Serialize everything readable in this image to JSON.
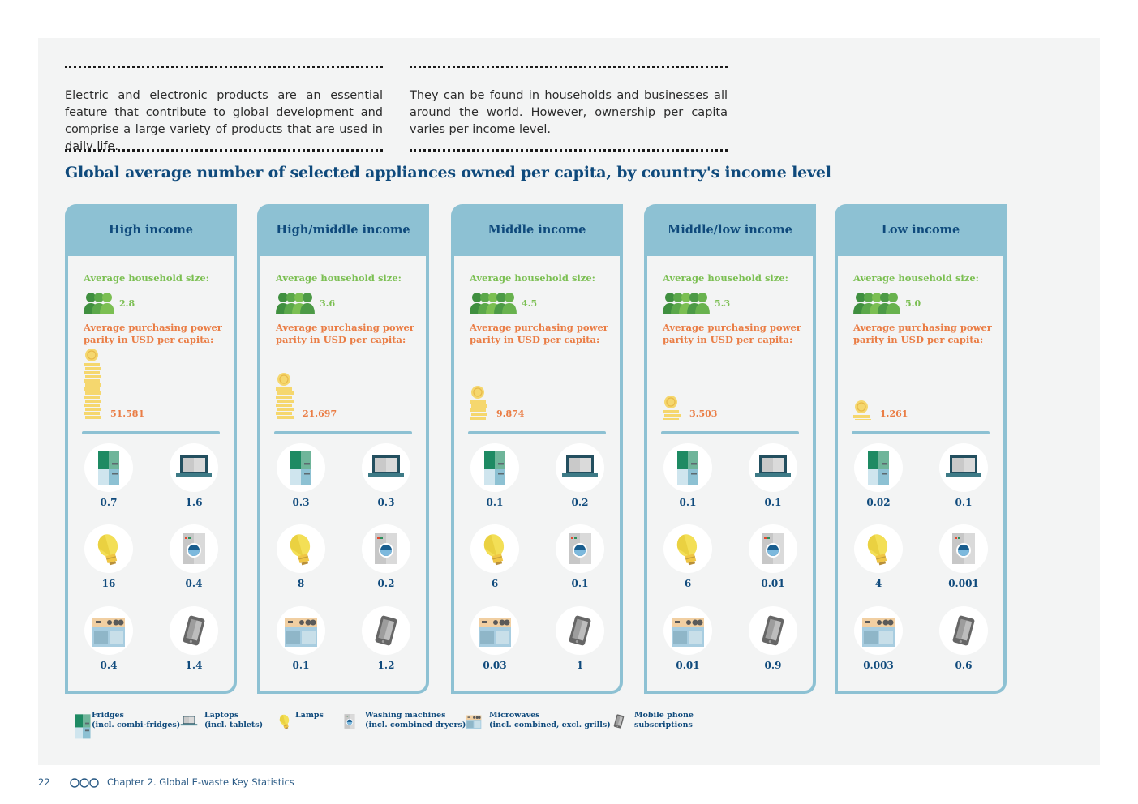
{
  "intro": {
    "left": "Electric and electronic products are an essential feature that contribute to global development and comprise a large variety of products that are used in daily life.",
    "right": "They can be found in households and businesses all around the world. However, ownership per capita varies per income level."
  },
  "labels": {
    "household": "Average household size:",
    "ppp_line1": "Average purchasing power",
    "ppp_line2": "parity in USD per capita:"
  },
  "colors": {
    "navy": "#0f4a7c",
    "card_border": "#8dc1d3",
    "green": "#7bbf52",
    "orange": "#ea7d45",
    "coin": "#f5d76e"
  },
  "chart_data": {
    "type": "table",
    "title": "Global average number of selected appliances owned per capita, by country's income level",
    "groups": [
      {
        "name": "High income",
        "household_size": "2.8",
        "ppp": "51.581",
        "fridges": "0.7",
        "laptops": "1.6",
        "lamps": "16",
        "washing_machines": "0.4",
        "microwaves": "0.4",
        "mobile_phones": "1.4"
      },
      {
        "name": "High/middle income",
        "household_size": "3.6",
        "ppp": "21.697",
        "fridges": "0.3",
        "laptops": "0.3",
        "lamps": "8",
        "washing_machines": "0.2",
        "microwaves": "0.1",
        "mobile_phones": "1.2"
      },
      {
        "name": "Middle income",
        "household_size": "4.5",
        "ppp": "9.874",
        "fridges": "0.1",
        "laptops": "0.2",
        "lamps": "6",
        "washing_machines": "0.1",
        "microwaves": "0.03",
        "mobile_phones": "1"
      },
      {
        "name": "Middle/low income",
        "household_size": "5.3",
        "ppp": "3.503",
        "fridges": "0.1",
        "laptops": "0.1",
        "lamps": "6",
        "washing_machines": "0.01",
        "microwaves": "0.01",
        "mobile_phones": "0.9"
      },
      {
        "name": "Low income",
        "household_size": "5.0",
        "ppp": "1.261",
        "fridges": "0.02",
        "laptops": "0.1",
        "lamps": "4",
        "washing_machines": "0.001",
        "microwaves": "0.003",
        "mobile_phones": "0.6"
      }
    ],
    "legend": [
      {
        "key": "fridges",
        "icon": "fridge-icon",
        "line1": "Fridges",
        "line2": "(incl. combi-fridges)"
      },
      {
        "key": "laptops",
        "icon": "laptop-icon",
        "line1": "Laptops",
        "line2": "(incl. tablets)"
      },
      {
        "key": "lamps",
        "icon": "lamp-icon",
        "line1": "Lamps",
        "line2": ""
      },
      {
        "key": "washing_machines",
        "icon": "washing-machine-icon",
        "line1": "Washing machines",
        "line2": "(incl. combined dryers)"
      },
      {
        "key": "microwaves",
        "icon": "microwave-icon",
        "line1": "Microwaves",
        "line2": "(incl. combined, excl. grills)"
      },
      {
        "key": "mobile_phones",
        "icon": "mobile-phone-icon",
        "line1": "Mobile phone",
        "line2": "subscriptions"
      }
    ]
  },
  "footer": {
    "page_number": "22",
    "chapter": "Chapter 2. Global E-waste Key Statistics"
  }
}
